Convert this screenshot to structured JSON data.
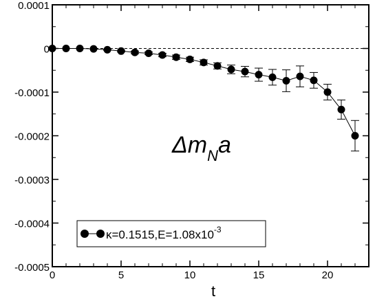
{
  "chart_data": {
    "type": "line",
    "xlabel": "t",
    "ylabel": "",
    "xlim": [
      0,
      23
    ],
    "ylim": [
      -0.0005,
      0.0001
    ],
    "x_ticks": [
      0,
      5,
      10,
      15,
      20
    ],
    "x_tick_labels": [
      "0",
      "5",
      "10",
      "15",
      "20"
    ],
    "y_ticks": [
      0.0001,
      0,
      -0.0001,
      -0.0002,
      -0.0003,
      -0.0004,
      -0.0005
    ],
    "y_tick_labels": [
      "0.0001",
      "0",
      "-0.0001",
      "-0.0002",
      "-0.0003",
      "-0.0004",
      "-0.0005"
    ],
    "reference_line": {
      "y": 0,
      "style": "dashed"
    },
    "annotation": {
      "main": "Δm",
      "sub": "N",
      "tail": "a"
    },
    "legend": {
      "placement": "bottom-left",
      "text": "κ=0.1515,E=1.08x10",
      "superscript": "-3"
    },
    "series": [
      {
        "name": "κ=0.1515,E=1.08x10-3",
        "color": "#000000",
        "x": [
          0,
          1,
          2,
          3,
          4,
          5,
          6,
          7,
          8,
          9,
          10,
          11,
          12,
          13,
          14,
          15,
          16,
          17,
          18,
          19,
          20,
          21,
          22
        ],
        "y": [
          0,
          0,
          0,
          -1e-06,
          -3e-06,
          -6e-06,
          -9e-06,
          -1.1e-05,
          -1.5e-05,
          -2e-05,
          -2.5e-05,
          -3.2e-05,
          -4e-05,
          -4.8e-05,
          -5.3e-05,
          -6e-05,
          -6.6e-05,
          -7.4e-05,
          -6.4e-05,
          -7.3e-05,
          -0.0001,
          -0.00014,
          -0.0002
        ],
        "yerr": [
          0,
          0,
          0,
          0,
          1e-06,
          2e-06,
          3e-06,
          3e-06,
          4e-06,
          5e-06,
          5e-06,
          6e-06,
          7e-06,
          1e-05,
          1.2e-05,
          1.5e-05,
          1.8e-05,
          2.5e-05,
          2.4e-05,
          1.8e-05,
          1.8e-05,
          2.2e-05,
          3.5e-05
        ]
      }
    ]
  }
}
